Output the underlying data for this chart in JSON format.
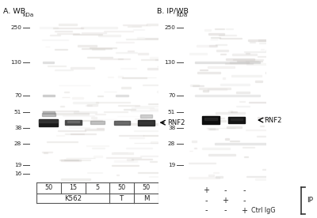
{
  "panel_a_label": "A. WB",
  "panel_b_label": "B. IP/WB",
  "kda_label": "kDa",
  "mw_markers_a": [
    250,
    130,
    70,
    51,
    38,
    28,
    19,
    16
  ],
  "mw_markers_b": [
    250,
    130,
    70,
    51,
    38,
    28,
    19
  ],
  "rnf2_label": "RNF2",
  "blot_bg_a": "#e8e4de",
  "blot_bg_b": "#d0ccc6",
  "band_strong": "#1a1a1a",
  "band_medium": "#4a4a4a",
  "band_weak": "#909090",
  "panel_a_lanes": [
    "50",
    "15",
    "5",
    "50",
    "50"
  ],
  "panel_a_group_labels": [
    "K562",
    "T",
    "M"
  ],
  "panel_b_ctrl_label": "Ctrl IgG",
  "panel_b_ip_label": "IP"
}
